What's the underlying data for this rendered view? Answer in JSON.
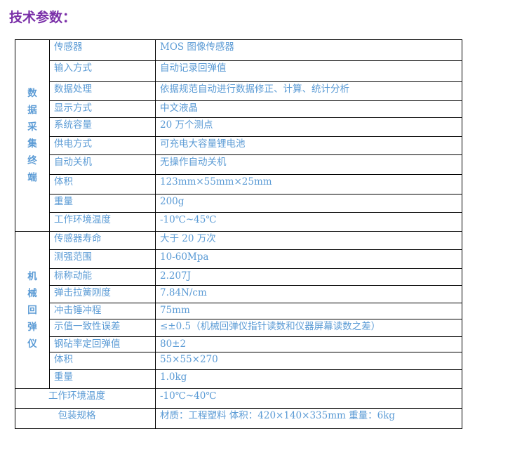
{
  "title": "技术参数：",
  "groups": [
    {
      "label": "数据采集终端",
      "rows": [
        {
          "param": "传感器",
          "value": "MOS 图像传感器"
        },
        {
          "param": "输入方式",
          "value": "自动记录回弹值"
        },
        {
          "param": "数据处理",
          "value": "依据规范自动进行数据修正、计算、统计分析"
        },
        {
          "param": "显示方式",
          "value": "中文液晶"
        },
        {
          "param": "系统容量",
          "value": "20 万个测点"
        },
        {
          "param": "供电方式",
          "value": "可充电大容量锂电池"
        },
        {
          "param": "自动关机",
          "value": "无操作自动关机"
        },
        {
          "param": "体积",
          "value": "123mm×55mm×25mm"
        },
        {
          "param": "重量",
          "value": "200g"
        },
        {
          "param": "工作环境温度",
          "value": "-10℃~45℃"
        }
      ]
    },
    {
      "label": "机械回弹仪",
      "rows": [
        {
          "param": "传感器寿命",
          "value": "大于 20 万次"
        },
        {
          "param": "测强范围",
          "value": "10-60Mpa"
        },
        {
          "param": "标称动能",
          "value": "2.207J"
        },
        {
          "param": "弹击拉簧刚度",
          "value": "7.84N/cm"
        },
        {
          "param": "冲击锤冲程",
          "value": "75mm"
        },
        {
          "param": "示值一致性误差",
          "value": "≤±0.5（机械回弹仪指针读数和仪器屏幕读数之差）"
        },
        {
          "param": "钢砧率定回弹值",
          "value": "80±2"
        },
        {
          "param": "体积",
          "value": "55×55×270"
        },
        {
          "param": "重量",
          "value": "1.0kg"
        }
      ]
    }
  ],
  "footer_rows": [
    {
      "param": "工作环境温度",
      "value": "-10℃~40℃"
    },
    {
      "param": "包装规格",
      "value": "材质：工程塑料   体积：420×140×335mm   重量：6kg"
    }
  ]
}
